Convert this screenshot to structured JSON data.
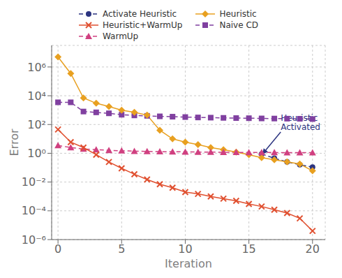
{
  "chart_data": {
    "type": "line",
    "x_label": "Iteration",
    "y_label": "Error",
    "log": "y",
    "grid": true,
    "xlim": [
      -0.5,
      21
    ],
    "xticks": [
      0,
      5,
      10,
      15,
      20
    ],
    "ylim": [
      1e-06,
      31622776.60168379
    ],
    "yticks": [
      {
        "value": 1e-06,
        "label": "10⁻⁶"
      },
      {
        "value": 0.0001,
        "label": "10⁻⁴"
      },
      {
        "value": 0.01,
        "label": "10⁻²"
      },
      {
        "value": 1,
        "label": "10⁰"
      },
      {
        "value": 100,
        "label": "10²"
      },
      {
        "value": 10000,
        "label": "10⁴"
      },
      {
        "value": 1000000,
        "label": "10⁶"
      }
    ],
    "series": [
      {
        "name": "Activate Heuristic",
        "color": "#2c3480",
        "marker": "circle",
        "line_style": "dashed",
        "x": [
          16,
          17,
          18,
          19,
          20
        ],
        "values": [
          0.9,
          0.45,
          0.25,
          0.16,
          0.11
        ]
      },
      {
        "name": "Naive CD",
        "color": "#8040a0",
        "marker": "square",
        "line_style": "dashed",
        "x": [
          0,
          1,
          2,
          3,
          4,
          5,
          6,
          7,
          8,
          9,
          10,
          11,
          12,
          13,
          14,
          15,
          16,
          17,
          18,
          19,
          20
        ],
        "values": [
          3500,
          3500,
          800,
          700,
          600,
          480,
          430,
          400,
          370,
          350,
          330,
          310,
          300,
          290,
          280,
          275,
          265,
          260,
          255,
          250,
          240
        ]
      },
      {
        "name": "Heuristic",
        "color": "#e8a020",
        "marker": "diamond",
        "line_style": "solid",
        "x": [
          0,
          1,
          2,
          3,
          4,
          5,
          6,
          7,
          8,
          9,
          10,
          11,
          12,
          13,
          14,
          15,
          16,
          17,
          18,
          19,
          20
        ],
        "values": [
          5000000,
          350000,
          7000,
          3000,
          1800,
          1000,
          700,
          450,
          40,
          10,
          6,
          4,
          2.5,
          1.8,
          1.2,
          0.8,
          0.5,
          0.35,
          0.25,
          0.18,
          0.06
        ]
      },
      {
        "name": "WarmUp",
        "color": "#d04080",
        "marker": "triangle",
        "line_style": "dashed",
        "x": [
          0,
          1,
          2,
          3,
          4,
          5,
          6,
          7,
          8,
          9,
          10,
          11,
          12,
          13,
          14,
          15,
          16,
          17,
          18,
          19,
          20
        ],
        "values": [
          3.5,
          2.5,
          2.0,
          1.8,
          1.6,
          1.5,
          1.4,
          1.35,
          1.3,
          1.28,
          1.25,
          1.22,
          1.2,
          1.18,
          1.16,
          1.15,
          1.14,
          1.13,
          1.12,
          1.12,
          1.12
        ]
      },
      {
        "name": "Heuristic+WarmUp",
        "color": "#e05030",
        "marker": "x",
        "line_style": "solid",
        "x": [
          0,
          1,
          2,
          3,
          4,
          5,
          6,
          7,
          8,
          9,
          10,
          11,
          12,
          13,
          14,
          15,
          16,
          17,
          18,
          19,
          20
        ],
        "values": [
          45,
          6,
          2.5,
          0.8,
          0.25,
          0.09,
          0.035,
          0.015,
          0.007,
          0.004,
          0.002,
          0.0015,
          0.001,
          0.0007,
          0.0005,
          0.0003,
          0.0002,
          0.00012,
          7e-05,
          3e-05,
          4e-06
        ]
      }
    ],
    "annotations": [
      {
        "text": "Heuristic\nActivated",
        "x": 16.05,
        "y": 0.85,
        "text_x": 17.5,
        "text_y": 30,
        "color": "#2c3480"
      }
    ]
  }
}
